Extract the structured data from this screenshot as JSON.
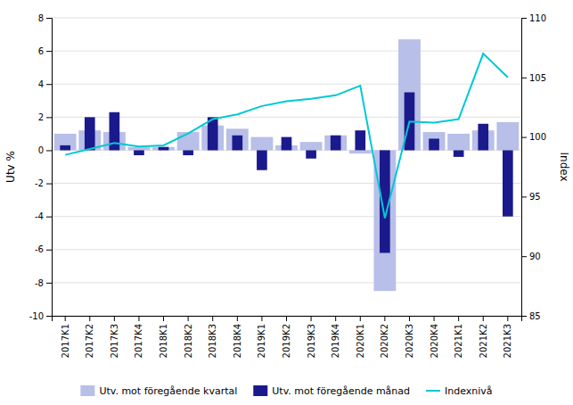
{
  "chart_data": {
    "type": "bar",
    "ylabel": "Utv %",
    "y2label": "Index",
    "categories": [
      "2017K1",
      "2017K2",
      "2017K3",
      "2017K4",
      "2018K1",
      "2018K2",
      "2018K3",
      "2018K4",
      "2019K1",
      "2019K2",
      "2019K3",
      "2019K4",
      "2020K1",
      "2020K2",
      "2020K3",
      "2020K4",
      "2021K1",
      "2021K2",
      "2021K3"
    ],
    "series": [
      {
        "name": "Utv. mot föregående kvartal",
        "type": "bar",
        "color": "#b8bfe8",
        "values": [
          1.0,
          1.2,
          1.1,
          0.2,
          0.2,
          1.1,
          1.5,
          1.3,
          0.8,
          0.3,
          0.5,
          0.9,
          -0.2,
          -8.5,
          6.7,
          1.1,
          1.0,
          1.2,
          1.7
        ]
      },
      {
        "name": "Utv. mot föregående månad",
        "type": "bar",
        "color": "#1a1a8c",
        "values": [
          0.3,
          2.0,
          2.3,
          -0.3,
          0.2,
          -0.3,
          2.0,
          0.9,
          -1.2,
          0.8,
          -0.5,
          0.9,
          1.2,
          -6.2,
          3.5,
          0.7,
          -0.4,
          1.6,
          -4.0
        ]
      },
      {
        "name": "Indexnivå",
        "type": "line",
        "color": "#00c8d4",
        "axis": "y2",
        "values": [
          98.5,
          99.0,
          99.5,
          99.2,
          99.3,
          100.3,
          101.5,
          101.9,
          102.6,
          103.0,
          103.2,
          103.5,
          104.3,
          93.2,
          101.3,
          101.2,
          101.5,
          107.0,
          105.0
        ]
      }
    ],
    "ylim": [
      -10,
      8
    ],
    "yticks": [
      -10,
      -8,
      -6,
      -4,
      -2,
      0,
      2,
      4,
      6,
      8
    ],
    "y2lim": [
      85,
      110
    ],
    "y2ticks": [
      85,
      90,
      95,
      100,
      105,
      110
    ],
    "grid": true,
    "legend": "bottom"
  }
}
